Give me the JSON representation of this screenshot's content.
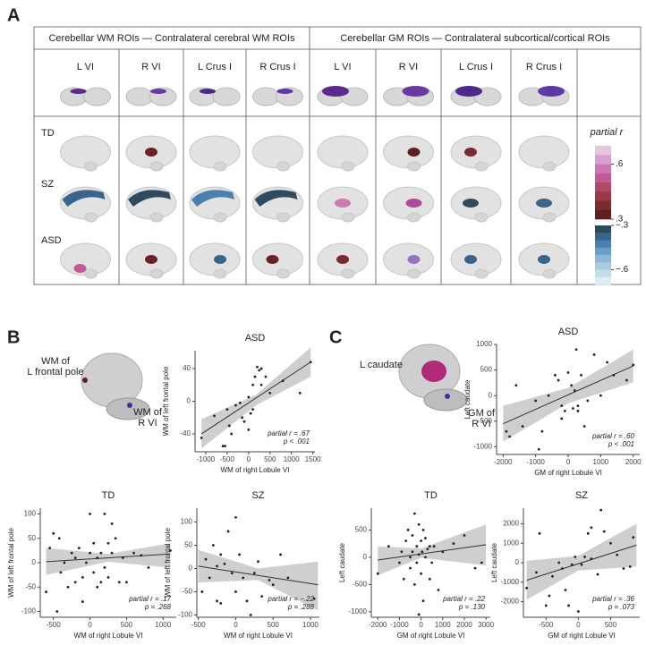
{
  "panel_a": {
    "label": "A",
    "group_headers": [
      "Cerebellar WM ROIs — Contralateral cerebral WM ROIs",
      "Cerebellar GM ROIs — Contralateral subcortical/cortical ROIs"
    ],
    "columns": [
      "L VI",
      "R VI",
      "L Crus I",
      "R  Crus I",
      "L VI",
      "R VI",
      "L Crus I",
      "R  Crus I"
    ],
    "rows": [
      "TD",
      "SZ",
      "ASD"
    ],
    "colorbar": {
      "title": "partial r",
      "pos_colors": [
        "#e6c3e0",
        "#d9a0cf",
        "#cc78b5",
        "#c25a95",
        "#b04a6a",
        "#9a3a45",
        "#7a2b2e",
        "#5e1f22"
      ],
      "neg_colors": [
        "#2f4a5e",
        "#3a6489",
        "#4a7fb0",
        "#6a9ccc",
        "#8fb8d6",
        "#a9cbdd",
        "#c3dde6",
        "#dcecf1"
      ],
      "pos_lim": [
        0.3,
        0.7
      ],
      "neg_lim": [
        -0.7,
        -0.3
      ],
      "ticks": [
        {
          "value": 0.6,
          "label": ".6"
        },
        {
          "value": 0.3,
          "label": ".3"
        },
        {
          "value": -0.3,
          "label": "−.3"
        },
        {
          "value": -0.6,
          "label": "−.6"
        }
      ]
    }
  },
  "panel_b": {
    "label": "B",
    "brain_label_1": [
      "WM of",
      "L frontal pole"
    ],
    "brain_label_2": [
      "WM of",
      "R VI"
    ]
  },
  "panel_c": {
    "label": "C",
    "brain_label_1": [
      "L caudate"
    ],
    "brain_label_2": [
      "GM of",
      "R VI"
    ]
  },
  "chart_data": [
    {
      "type": "scatter",
      "title": "ASD",
      "xlabel": "WM of right Lobule VI",
      "ylabel": "WM of left frontal pole",
      "x": [
        -1100,
        -800,
        -600,
        -550,
        -500,
        -450,
        -300,
        -200,
        -150,
        -100,
        0,
        50,
        100,
        100,
        150,
        200,
        250,
        300,
        300,
        400,
        500,
        800,
        1200,
        1450,
        -400,
        0
      ],
      "y": [
        -45,
        -18,
        -55,
        -55,
        -10,
        -30,
        -5,
        -2,
        -20,
        -25,
        5,
        -15,
        -10,
        20,
        30,
        42,
        38,
        40,
        20,
        30,
        10,
        25,
        10,
        48,
        -40,
        -35
      ],
      "xlim": [
        -1250,
        1550
      ],
      "ylim": [
        -62,
        62
      ],
      "xticks": [
        -1000,
        -500,
        0,
        500,
        1000,
        1500
      ],
      "yticks": [
        -40,
        0,
        40
      ],
      "trend": {
        "x": [
          -1100,
          1450
        ],
        "y": [
          -40,
          48
        ]
      },
      "ci": {
        "x": [
          -1100,
          175,
          1450
        ],
        "lower": [
          -58,
          -5,
          30
        ],
        "upper": [
          -22,
          8,
          66
        ]
      },
      "annotations": [
        "partial r = .67",
        "p < .001"
      ],
      "color": "#222222",
      "band_color": "#cfcfcf"
    },
    {
      "type": "scatter",
      "title": "TD",
      "xlabel": "WM of right Lobule VI",
      "ylabel": "WM of left frontal pole",
      "x": [
        -600,
        -550,
        -500,
        -450,
        -420,
        -400,
        -350,
        -300,
        -250,
        -200,
        -200,
        -150,
        -100,
        -50,
        0,
        0,
        50,
        50,
        100,
        100,
        150,
        150,
        200,
        200,
        250,
        250,
        300,
        350,
        400,
        450,
        500,
        600,
        700,
        800,
        1100,
        -100,
        300
      ],
      "y": [
        -60,
        30,
        60,
        -100,
        50,
        -20,
        0,
        -50,
        20,
        -40,
        10,
        30,
        -30,
        0,
        100,
        20,
        -20,
        40,
        10,
        -50,
        20,
        -40,
        -10,
        100,
        40,
        -30,
        20,
        50,
        -40,
        10,
        -40,
        20,
        15,
        -10,
        25,
        -80,
        80
      ],
      "xlim": [
        -680,
        1180
      ],
      "ylim": [
        -112,
        112
      ],
      "xticks": [
        -500,
        0,
        500,
        1000
      ],
      "yticks": [
        -100,
        -50,
        0,
        50,
        100
      ],
      "trend": {
        "x": [
          -600,
          1100
        ],
        "y": [
          2,
          18
        ]
      },
      "ci": {
        "x": [
          -600,
          250,
          1100
        ],
        "lower": [
          -25,
          2,
          -10
        ],
        "upper": [
          30,
          18,
          40
        ]
      },
      "annotations": [
        "partial r = .17",
        "p = .268"
      ],
      "color": "#222222",
      "band_color": "#cfcfcf"
    },
    {
      "type": "scatter",
      "title": "SZ",
      "xlabel": "WM of right Lobule VI",
      "ylabel": "WM of left frontal pole",
      "x": [
        -450,
        -400,
        -350,
        -300,
        -250,
        -250,
        -200,
        -150,
        -100,
        -50,
        0,
        0,
        50,
        100,
        150,
        200,
        250,
        300,
        350,
        450,
        500,
        600,
        -200,
        1050,
        700
      ],
      "y": [
        -50,
        20,
        -20,
        50,
        5,
        -70,
        30,
        10,
        80,
        -10,
        -50,
        110,
        30,
        -20,
        -70,
        -100,
        -10,
        15,
        -60,
        -25,
        -35,
        30,
        -75,
        -65,
        -20
      ],
      "xlim": [
        -520,
        1120
      ],
      "ylim": [
        -105,
        130
      ],
      "xticks": [
        -500,
        0,
        500,
        1000
      ],
      "yticks": [
        -100,
        -50,
        0,
        50,
        100
      ],
      "trend": {
        "x": [
          -500,
          1100
        ],
        "y": [
          5,
          -35
        ]
      },
      "ci": {
        "x": [
          -500,
          300,
          1100
        ],
        "lower": [
          -30,
          -25,
          -90
        ],
        "upper": [
          40,
          0,
          15
        ]
      },
      "annotations": [
        "partial r = −.22",
        "p = .288"
      ],
      "color": "#222222",
      "band_color": "#cfcfcf"
    },
    {
      "type": "scatter",
      "title": "ASD",
      "xlabel": "GM of right Lobule VI",
      "ylabel": "Left caudate",
      "x": [
        -1900,
        -1800,
        -1600,
        -1400,
        -1000,
        -900,
        -800,
        -600,
        -400,
        -300,
        -200,
        -100,
        0,
        100,
        150,
        200,
        250,
        300,
        400,
        500,
        600,
        800,
        1000,
        1200,
        1400,
        1800,
        2000,
        -200,
        300
      ],
      "y": [
        -700,
        -800,
        200,
        -600,
        -100,
        -1050,
        -700,
        0,
        400,
        300,
        -200,
        -300,
        450,
        200,
        -250,
        100,
        900,
        -300,
        400,
        -600,
        -100,
        800,
        0,
        650,
        400,
        300,
        600,
        -450,
        -200
      ],
      "xlim": [
        -2200,
        2200
      ],
      "ylim": [
        -1150,
        1000
      ],
      "xticks": [
        -2000,
        -1000,
        0,
        1000,
        2000
      ],
      "yticks": [
        -1000,
        -500,
        0,
        500,
        1000
      ],
      "trend": {
        "x": [
          -2000,
          2000
        ],
        "y": [
          -550,
          580
        ]
      },
      "ci": {
        "x": [
          -2000,
          0,
          2000
        ],
        "lower": [
          -900,
          -150,
          260
        ],
        "upper": [
          -200,
          150,
          900
        ]
      },
      "annotations": [
        "partial r = .60",
        "p < .001"
      ],
      "color": "#222222",
      "band_color": "#cfcfcf"
    },
    {
      "type": "scatter",
      "title": "TD",
      "xlabel": "GM of right Lobule VI",
      "ylabel": "Left caudate",
      "x": [
        -2000,
        -1500,
        -1000,
        -900,
        -800,
        -700,
        -600,
        -500,
        -500,
        -400,
        -400,
        -300,
        -300,
        -200,
        -200,
        -100,
        -100,
        0,
        0,
        50,
        100,
        100,
        200,
        200,
        300,
        400,
        500,
        600,
        800,
        1000,
        1500,
        2000,
        2500,
        2800,
        -100,
        400
      ],
      "y": [
        -300,
        200,
        -100,
        100,
        -400,
        300,
        500,
        -200,
        0,
        100,
        400,
        800,
        -500,
        200,
        -100,
        600,
        50,
        -300,
        300,
        100,
        500,
        -800,
        0,
        350,
        150,
        -400,
        -100,
        200,
        -600,
        100,
        250,
        400,
        -200,
        -100,
        -1050,
        200
      ],
      "xlim": [
        -2300,
        3200
      ],
      "ylim": [
        -1100,
        900
      ],
      "xticks": [
        -2000,
        -1000,
        0,
        1000,
        2000,
        3000
      ],
      "yticks": [
        -1000,
        -500,
        0,
        500
      ],
      "trend": {
        "x": [
          -2000,
          3000
        ],
        "y": [
          -50,
          230
        ]
      },
      "ci": {
        "x": [
          -2000,
          0,
          3000
        ],
        "lower": [
          -330,
          -10,
          -150
        ],
        "upper": [
          200,
          160,
          600
        ]
      },
      "annotations": [
        "partial r = .22",
        "p = .130"
      ],
      "color": "#222222",
      "band_color": "#cfcfcf"
    },
    {
      "type": "scatter",
      "title": "SZ",
      "xlabel": "GM of right Lobule VI",
      "ylabel": "Left caudate",
      "x": [
        -800,
        -650,
        -600,
        -500,
        -450,
        -400,
        -300,
        -250,
        -200,
        -150,
        -100,
        -50,
        0,
        50,
        100,
        150,
        200,
        200,
        300,
        350,
        400,
        500,
        600,
        700,
        800,
        850
      ],
      "y": [
        -1300,
        -500,
        1500,
        -2200,
        -1700,
        -700,
        0,
        -300,
        -1400,
        -2200,
        -100,
        300,
        -2500,
        -100,
        300,
        1500,
        1800,
        200,
        -600,
        2700,
        1600,
        1000,
        400,
        -300,
        -200,
        1300
      ],
      "xlim": [
        -850,
        950
      ],
      "ylim": [
        -2800,
        2800
      ],
      "xticks": [
        -500,
        0,
        500
      ],
      "yticks": [
        -2000,
        -1000,
        0,
        1000,
        2000
      ],
      "trend": {
        "x": [
          -800,
          900
        ],
        "y": [
          -900,
          900
        ]
      },
      "ci": {
        "x": [
          -800,
          0,
          900
        ],
        "lower": [
          -1900,
          -400,
          -200
        ],
        "upper": [
          100,
          350,
          2000
        ]
      },
      "annotations": [
        "partial r = .36",
        "p = .073"
      ],
      "color": "#222222",
      "band_color": "#cfcfcf"
    }
  ]
}
